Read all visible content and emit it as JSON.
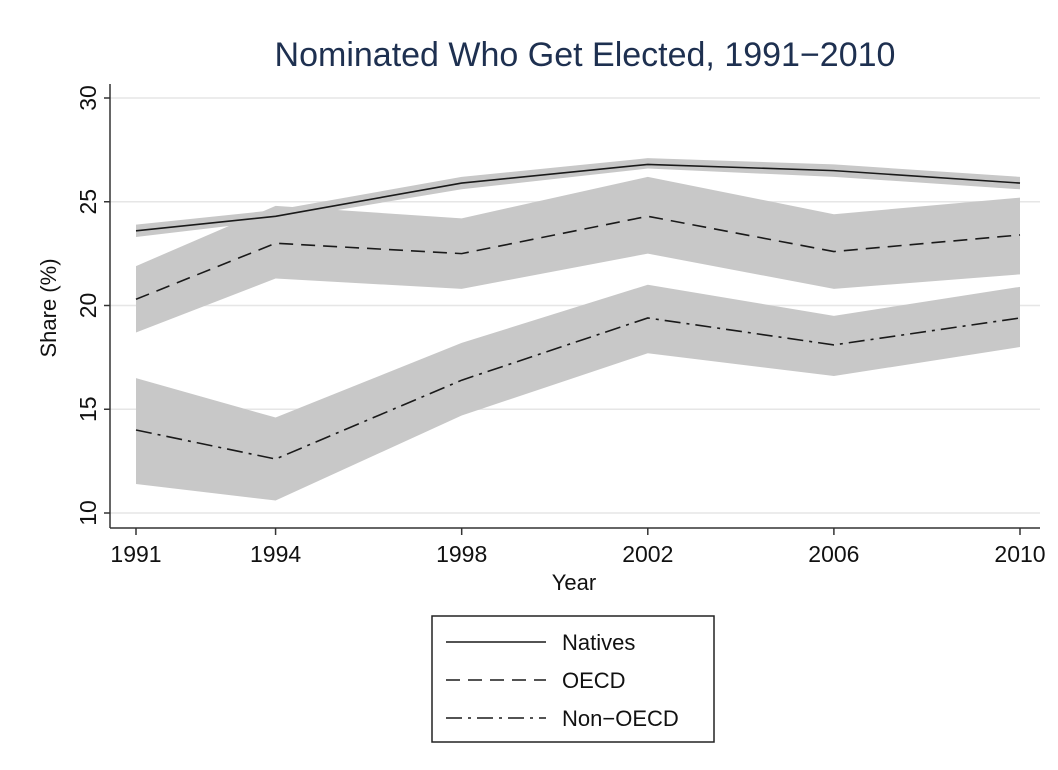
{
  "chart_data": {
    "type": "line",
    "title": "Nominated Who Get Elected, 1991−2010",
    "xlabel": "Year",
    "ylabel": "Share (%)",
    "x": [
      1991,
      1994,
      1998,
      2002,
      2006,
      2010
    ],
    "x_ticks": [
      "1991",
      "1994",
      "1998",
      "2002",
      "2006",
      "2010"
    ],
    "y_ticks": [
      "10",
      "15",
      "20",
      "25",
      "30"
    ],
    "ylim": [
      10,
      30
    ],
    "xlim": [
      1991,
      2010
    ],
    "grid": "horizontal",
    "legend_position": "bottom-center",
    "band_color": "#c8c8c8",
    "line_color": "#1a1a1a",
    "series": [
      {
        "name": "Natives",
        "values": [
          23.6,
          24.3,
          25.9,
          26.8,
          26.5,
          25.9
        ],
        "ci_lower": [
          23.3,
          24.1,
          25.6,
          26.6,
          26.2,
          25.6
        ],
        "ci_upper": [
          23.9,
          24.6,
          26.2,
          27.1,
          26.8,
          26.2
        ],
        "dash": "solid"
      },
      {
        "name": "OECD",
        "values": [
          20.3,
          23.0,
          22.5,
          24.3,
          22.6,
          23.4
        ],
        "ci_lower": [
          18.7,
          21.3,
          20.8,
          22.5,
          20.8,
          21.5
        ],
        "ci_upper": [
          21.9,
          24.8,
          24.2,
          26.2,
          24.4,
          25.2
        ],
        "dash": "dash"
      },
      {
        "name": "Non−OECD",
        "values": [
          14.0,
          12.6,
          16.4,
          19.4,
          18.1,
          19.4
        ],
        "ci_lower": [
          11.4,
          10.6,
          14.7,
          17.7,
          16.6,
          18.0
        ],
        "ci_upper": [
          16.5,
          14.6,
          18.2,
          21.0,
          19.5,
          20.9
        ],
        "dash": "dashdot"
      }
    ]
  }
}
